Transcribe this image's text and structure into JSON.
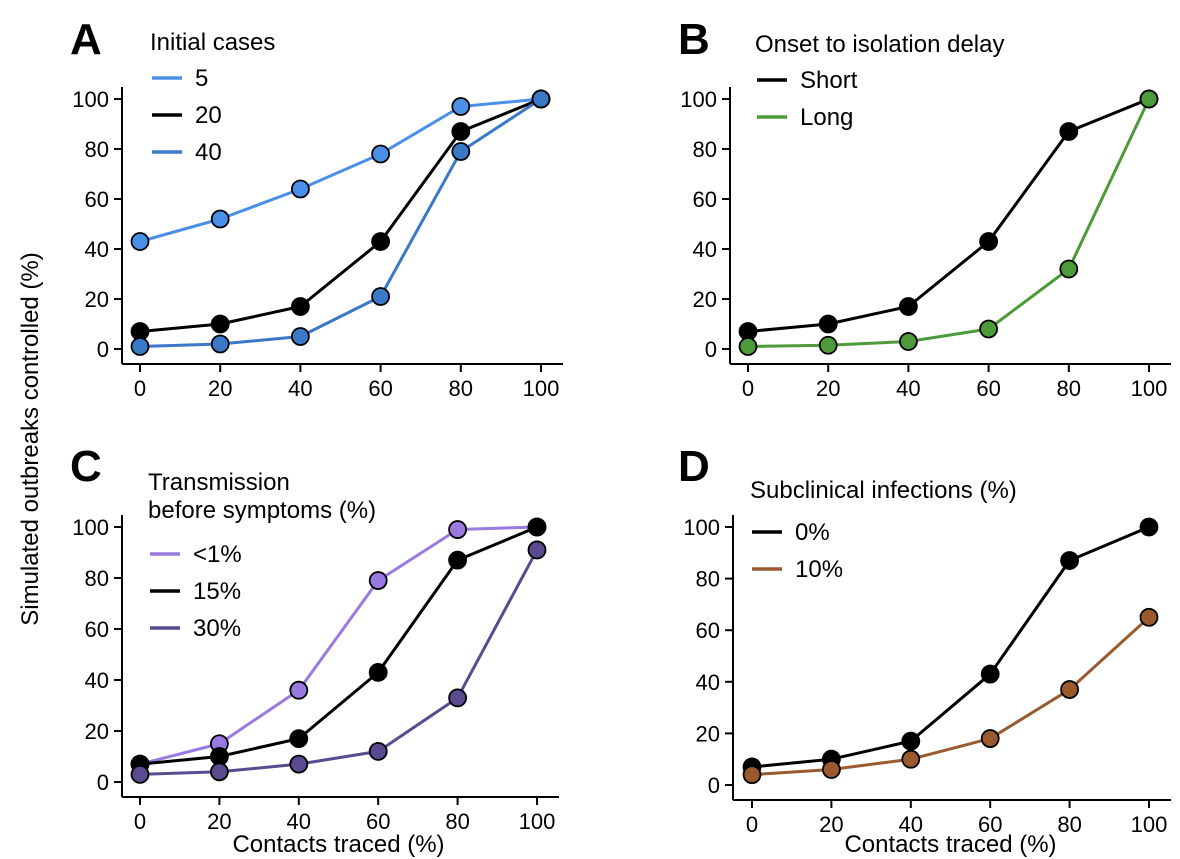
{
  "figure": {
    "ylabel": "Simulated outbreaks controlled (%)",
    "xlabel": "Contacts traced (%)"
  },
  "chart_data": [
    {
      "type": "line",
      "panel": "A",
      "legend_title": "Initial cases",
      "x": [
        0,
        20,
        40,
        60,
        80,
        100
      ],
      "xticks": [
        "0",
        "20",
        "40",
        "60",
        "80",
        "100"
      ],
      "yticks": [
        "0",
        "20",
        "40",
        "60",
        "80",
        "100"
      ],
      "xlim": [
        0,
        100
      ],
      "ylim": [
        0,
        100
      ],
      "xlabel": "",
      "ylabel": "Simulated outbreaks controlled (%)",
      "legend_position": "top-left",
      "grid": false,
      "series": [
        {
          "name": "5",
          "color": "#4a90e8",
          "values": [
            43,
            52,
            64,
            78,
            97,
            100
          ]
        },
        {
          "name": "20",
          "color": "#000000",
          "values": [
            7,
            10,
            17,
            43,
            87,
            100
          ]
        },
        {
          "name": "40",
          "color": "#3a78c8",
          "values": [
            1,
            2,
            5,
            21,
            79,
            100
          ]
        }
      ]
    },
    {
      "type": "line",
      "panel": "B",
      "legend_title": "Onset to isolation delay",
      "x": [
        0,
        20,
        40,
        60,
        80,
        100
      ],
      "xticks": [
        "0",
        "20",
        "40",
        "60",
        "80",
        "100"
      ],
      "yticks": [
        "0",
        "20",
        "40",
        "60",
        "80",
        "100"
      ],
      "xlim": [
        0,
        100
      ],
      "ylim": [
        0,
        100
      ],
      "xlabel": "",
      "ylabel": "",
      "legend_position": "top-left",
      "grid": false,
      "series": [
        {
          "name": "Short",
          "color": "#000000",
          "values": [
            7,
            10,
            17,
            43,
            87,
            100
          ]
        },
        {
          "name": "Long",
          "color": "#4c9a3a",
          "values": [
            1,
            1.5,
            3,
            8,
            32,
            100
          ]
        }
      ]
    },
    {
      "type": "line",
      "panel": "C",
      "legend_title_lines": [
        "Transmission",
        "before symptoms (%)"
      ],
      "x": [
        0,
        20,
        40,
        60,
        80,
        100
      ],
      "xticks": [
        "0",
        "20",
        "40",
        "60",
        "80",
        "100"
      ],
      "yticks": [
        "0",
        "20",
        "40",
        "60",
        "80",
        "100"
      ],
      "xlim": [
        0,
        100
      ],
      "ylim": [
        0,
        100
      ],
      "xlabel": "Contacts traced (%)",
      "ylabel": "",
      "legend_position": "top-left",
      "grid": false,
      "series": [
        {
          "name": "<1%",
          "color": "#9a7ae0",
          "values": [
            7,
            15,
            36,
            79,
            99,
            100
          ]
        },
        {
          "name": "15%",
          "color": "#000000",
          "values": [
            7,
            10,
            17,
            43,
            87,
            100
          ]
        },
        {
          "name": "30%",
          "color": "#5a4a90",
          "values": [
            3,
            4,
            7,
            12,
            33,
            91
          ]
        }
      ]
    },
    {
      "type": "line",
      "panel": "D",
      "legend_title": "Subclinical infections (%)",
      "x": [
        0,
        20,
        40,
        60,
        80,
        100
      ],
      "xticks": [
        "0",
        "20",
        "40",
        "60",
        "80",
        "100"
      ],
      "yticks": [
        "0",
        "20",
        "40",
        "60",
        "80",
        "100"
      ],
      "xlim": [
        0,
        100
      ],
      "ylim": [
        0,
        100
      ],
      "xlabel": "Contacts traced (%)",
      "ylabel": "",
      "legend_position": "top-left",
      "grid": false,
      "series": [
        {
          "name": "0%",
          "color": "#000000",
          "values": [
            7,
            10,
            17,
            43,
            87,
            100
          ]
        },
        {
          "name": "10%",
          "color": "#9a5a2e",
          "values": [
            4,
            6,
            10,
            18,
            37,
            65
          ]
        }
      ]
    }
  ]
}
